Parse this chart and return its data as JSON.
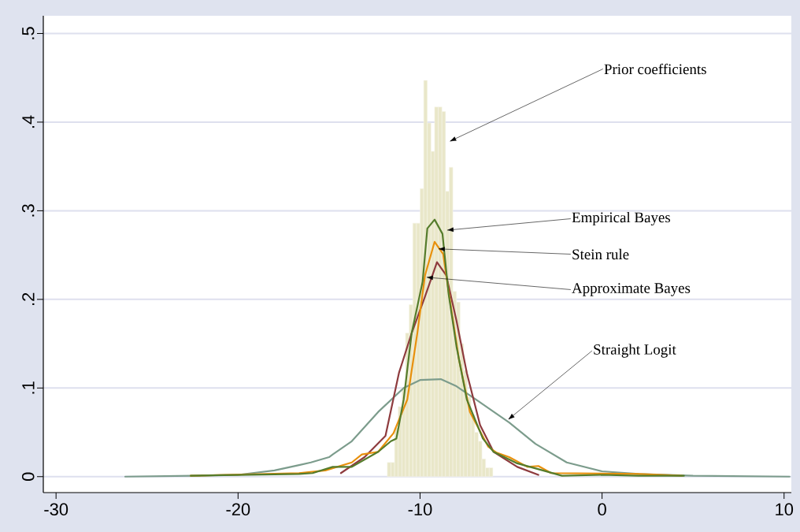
{
  "chart_data": {
    "type": "line",
    "xlim": [
      -30.7,
      10.4
    ],
    "ylim": [
      -0.018,
      0.52
    ],
    "xticks": [
      -30,
      -20,
      -10,
      0,
      10
    ],
    "yticks": [
      0,
      {
        "value": 0.1,
        "label": ".1"
      },
      {
        "value": 0.2,
        "label": ".2"
      },
      {
        "value": 0.3,
        "label": ".3"
      },
      {
        "value": 0.4,
        "label": ".4"
      },
      {
        "value": 0.5,
        "label": ".5"
      }
    ],
    "grid": "y",
    "series": [
      {
        "type": "histogram",
        "color": "#e9e7c9",
        "bins": [
          -11.8,
          -11.6,
          -11.4,
          -11.2,
          -11.0,
          -10.8,
          -10.6,
          -10.4,
          -10.2,
          -10.0,
          -9.8,
          -9.6,
          -9.4,
          -9.2,
          -9.0,
          -8.8,
          -8.6,
          -8.4,
          -8.2,
          -8.0,
          -7.8,
          -7.6,
          -7.4,
          -7.2,
          -7.0,
          -6.8,
          -6.6,
          -6.4,
          -6.2,
          -6.0
        ],
        "values": [
          0.016,
          0.016,
          0.055,
          0.079,
          0.1,
          0.162,
          0.194,
          0.286,
          0.286,
          0.325,
          0.447,
          0.399,
          0.367,
          0.417,
          0.417,
          0.412,
          0.322,
          0.349,
          0.209,
          0.197,
          0.15,
          0.12,
          0.09,
          0.07,
          0.05,
          0.04,
          0.02,
          0.01,
          0.01
        ]
      },
      {
        "color": "#7c9c8c",
        "x": [
          -26.2,
          -22.5,
          -20,
          -18,
          -16.65,
          -16,
          -15,
          -14.8,
          -13.75,
          -12.3,
          -10.9,
          -10,
          -8.86,
          -8,
          -6.57,
          -5.1,
          -3.66,
          -1.94,
          0,
          2,
          5,
          10.3
        ],
        "values": [
          0,
          0.001,
          0.002,
          0.007,
          0.013,
          0.016,
          0.022,
          0.025,
          0.04,
          0.073,
          0.1,
          0.109,
          0.11,
          0.102,
          0.082,
          0.061,
          0.037,
          0.016,
          0.006,
          0.003,
          0.001,
          0
        ]
      },
      {
        "color": "#8e3b3e",
        "x": [
          -14.35,
          -13.05,
          -11.9,
          -11.16,
          -10.46,
          -9.73,
          -9.07,
          -8.56,
          -8,
          -7.43,
          -6.7,
          -5.96,
          -4.66,
          -3.5
        ],
        "values": [
          0.004,
          0.022,
          0.046,
          0.117,
          0.162,
          0.203,
          0.242,
          0.227,
          0.176,
          0.117,
          0.058,
          0.028,
          0.011,
          0.002
        ]
      },
      {
        "color": "#e8900c",
        "x": [
          -22.6,
          -16.65,
          -15.2,
          -13.75,
          -13.2,
          -12.3,
          -11.46,
          -10.7,
          -10.15,
          -9.73,
          -9.2,
          -8.73,
          -8.3,
          -7.86,
          -7.26,
          -6.26,
          -5.8,
          -5.1,
          -4.1,
          -3.5,
          -2.8,
          2,
          4.4
        ],
        "values": [
          0.001,
          0.004,
          0.007,
          0.016,
          0.025,
          0.028,
          0.049,
          0.087,
          0.162,
          0.227,
          0.265,
          0.251,
          0.191,
          0.132,
          0.073,
          0.034,
          0.027,
          0.022,
          0.011,
          0.012,
          0.004,
          0.003,
          0.001
        ]
      },
      {
        "color": "#557c2c",
        "x": [
          -22.6,
          -16.65,
          -15.9,
          -14.8,
          -13.75,
          -12.3,
          -11.6,
          -11.3,
          -10.9,
          -10.46,
          -9.86,
          -9.6,
          -9.2,
          -8.77,
          -8.43,
          -8,
          -7.43,
          -6.55,
          -5.96,
          -4.66,
          -2.2,
          0,
          2,
          4.5
        ],
        "values": [
          0.001,
          0.003,
          0.004,
          0.011,
          0.011,
          0.028,
          0.04,
          0.043,
          0.087,
          0.162,
          0.22,
          0.28,
          0.29,
          0.274,
          0.206,
          0.147,
          0.087,
          0.043,
          0.028,
          0.015,
          0.001,
          0.002,
          0.001,
          0.001
        ]
      }
    ],
    "annotations": [
      {
        "text": "Prior coefficients",
        "x": -8.4,
        "y": 0.378
      },
      {
        "text": "Empirical Bayes",
        "x": -8.55,
        "y": 0.278
      },
      {
        "text": "Stein rule",
        "x": -9.03,
        "y": 0.257
      },
      {
        "text": "Approximate Bayes",
        "x": -9.68,
        "y": 0.225
      },
      {
        "text": "Straight Logit",
        "x": -5.18,
        "y": 0.064
      }
    ]
  }
}
